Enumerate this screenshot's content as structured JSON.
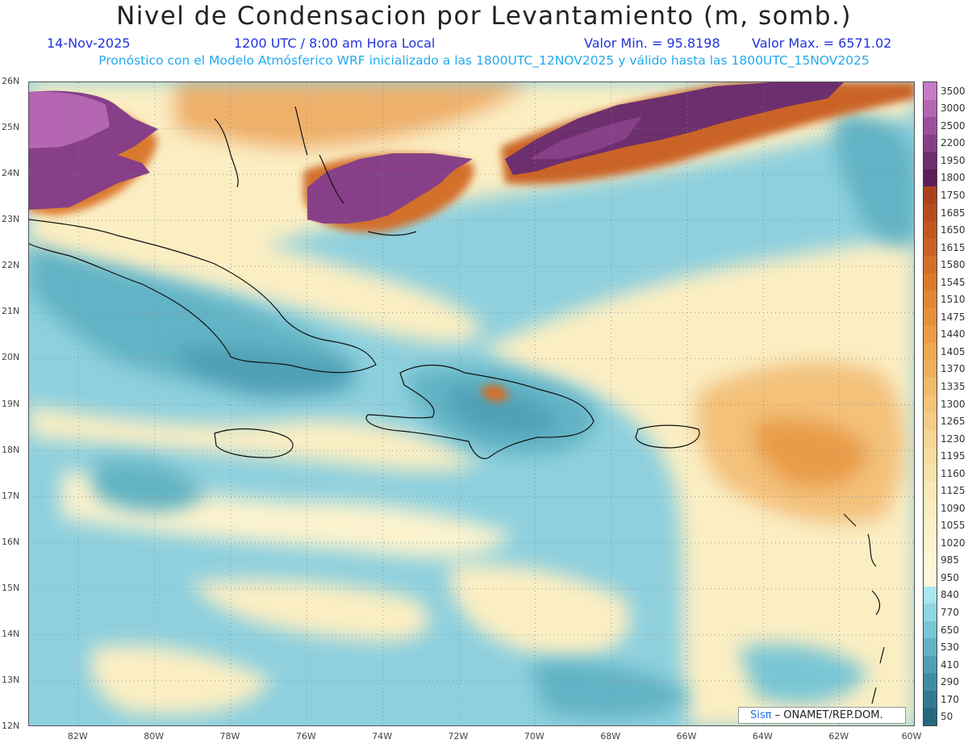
{
  "header": {
    "title": "Nivel de Condensacion por Levantamiento (m, somb.)",
    "date": "14-Nov-2025",
    "time": "1200 UTC / 8:00 am Hora Local",
    "valmin": "Valor Min. = 95.8198",
    "valmax": "Valor Max. = 6571.02",
    "forecast": "Pronóstico con el Modelo Atmósferico WRF inicializado a las 1800UTC_12NOV2025 y válido hasta las  1800UTC_15NOV2025"
  },
  "map": {
    "lat_labels": [
      "26N",
      "25N",
      "24N",
      "23N",
      "22N",
      "21N",
      "20N",
      "19N",
      "18N",
      "17N",
      "16N",
      "15N",
      "14N",
      "13N",
      "12N"
    ],
    "lon_labels": [
      "82W",
      "80W",
      "78W",
      "76W",
      "74W",
      "72W",
      "70W",
      "68W",
      "66W",
      "64W",
      "62W",
      "60W"
    ],
    "lon_range": [
      -83.3,
      -60.0
    ],
    "lat_range": [
      12.0,
      26.0
    ],
    "grid": true
  },
  "colorbar": {
    "labels": [
      "3500",
      "3000",
      "2500",
      "2200",
      "1950",
      "1800",
      "1750",
      "1685",
      "1650",
      "1615",
      "1580",
      "1545",
      "1510",
      "1475",
      "1440",
      "1405",
      "1370",
      "1335",
      "1300",
      "1265",
      "1230",
      "1195",
      "1160",
      "1125",
      "1090",
      "1055",
      "1020",
      "985",
      "950",
      "840",
      "770",
      "650",
      "530",
      "410",
      "290",
      "170",
      "50"
    ],
    "colors": [
      "#c77bc6",
      "#b466b2",
      "#9c4f9c",
      "#874088",
      "#6d2f6e",
      "#5b1f55",
      "#a8431d",
      "#b64d1f",
      "#c15822",
      "#cb6325",
      "#d36f29",
      "#db7a2d",
      "#e08634",
      "#e5913b",
      "#e99c46",
      "#eda651",
      "#efb05e",
      "#f1ba6b",
      "#f3c47a",
      "#f5cc87",
      "#f7d594",
      "#f8dca0",
      "#f9e2ab",
      "#fae8b6",
      "#fbedbf",
      "#fbf0c6",
      "#fcf3cd",
      "#fdf6d4",
      "#fdf8da",
      "#a9e6ee",
      "#8fd6e3",
      "#78c6d5",
      "#62b3c5",
      "#4f9fb5",
      "#3f8ca3",
      "#327991",
      "#266780"
    ]
  },
  "credit": {
    "sis": "Sisπ",
    "org": "– ONAMET/REP.DOM."
  }
}
